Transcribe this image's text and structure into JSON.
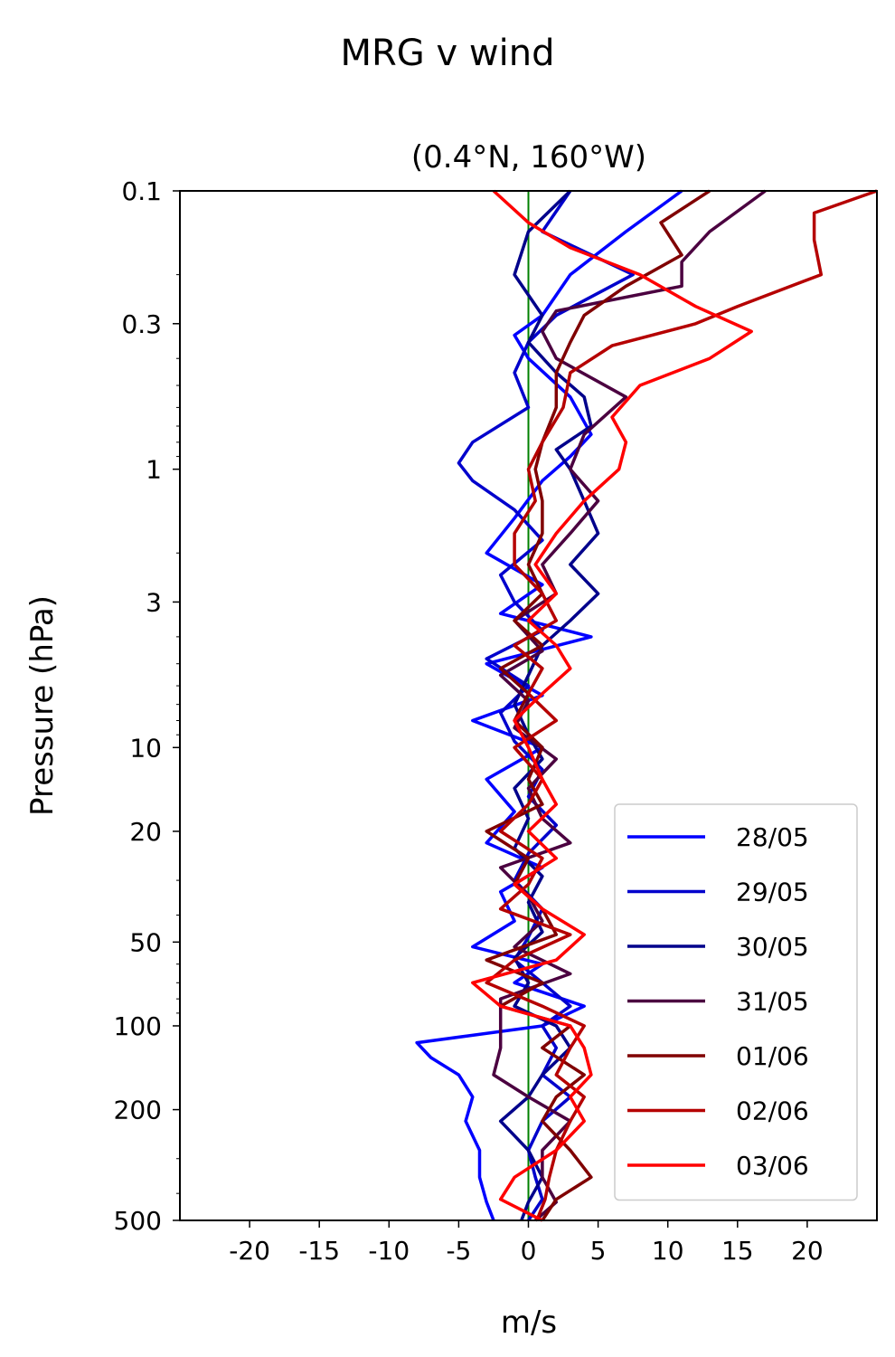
{
  "figure": {
    "title": "MRG v wind",
    "subtitle": "(0.4°N, 160°W)"
  },
  "chart_data": {
    "type": "line",
    "xlabel": "m/s",
    "ylabel": "Pressure (hPa)",
    "xlim": [
      -25,
      25
    ],
    "ylim": [
      500,
      0.1
    ],
    "yscale": "log",
    "inverted_y": true,
    "x_ticks": [
      -20,
      -15,
      -10,
      -5,
      0,
      5,
      10,
      15,
      20
    ],
    "x_tick_labels": [
      "-20",
      "-15",
      "-10",
      "-5",
      "0",
      "5",
      "10",
      "15",
      "20"
    ],
    "y_ticks": [
      0.1,
      0.3,
      1,
      3,
      10,
      20,
      50,
      100,
      200,
      500
    ],
    "y_tick_labels": [
      "0.1",
      "0.3",
      "1",
      "3",
      "10",
      "20",
      "50",
      "100",
      "200",
      "500"
    ],
    "zero_line": {
      "x": 0,
      "color": "#008000"
    },
    "grid": false,
    "legend_position": "lower-right",
    "series": [
      {
        "name": "28/05",
        "color": "#0000ff",
        "p": [
          0.1,
          0.14,
          0.2,
          0.28,
          0.33,
          0.4,
          0.55,
          0.75,
          0.9,
          1.1,
          1.5,
          2.0,
          2.6,
          3.3,
          4.0,
          5.0,
          6.5,
          8.0,
          10,
          13,
          17,
          22,
          27,
          33,
          42,
          52,
          60,
          70,
          85,
          100,
          115,
          130,
          150,
          180,
          220,
          280,
          350,
          430,
          500
        ],
        "x": [
          11,
          7,
          3,
          1,
          -1,
          0,
          3,
          4.5,
          3,
          1,
          -1,
          -3,
          1,
          -2,
          4.5,
          -3,
          1,
          -4,
          1,
          -3,
          -1,
          -3,
          1,
          -2,
          -1,
          -4,
          1,
          -1,
          4,
          1,
          -8,
          -7,
          -5,
          -4,
          -4.5,
          -3.5,
          -3.5,
          -3,
          -2.5
        ]
      },
      {
        "name": "29/05",
        "color": "#0000cc",
        "p": [
          0.1,
          0.14,
          0.2,
          0.28,
          0.35,
          0.45,
          0.6,
          0.8,
          0.95,
          1.1,
          1.4,
          1.8,
          2.4,
          3.0,
          3.8,
          4.8,
          6.0,
          7.5,
          9.5,
          12,
          15,
          19,
          24,
          30,
          38,
          48,
          58,
          70,
          85,
          100,
          120,
          150,
          180,
          220,
          280,
          350,
          420,
          500
        ],
        "x": [
          3,
          1,
          7.5,
          2,
          0,
          -1,
          0,
          -4,
          -5,
          -4,
          -1,
          1,
          -2,
          -1,
          1,
          -3,
          0,
          -2,
          -1,
          1,
          0,
          2,
          0,
          -1,
          1,
          0,
          -1,
          1,
          3,
          1,
          2,
          1,
          3,
          1,
          0,
          0.5,
          1,
          0
        ]
      },
      {
        "name": "30/05",
        "color": "#00008b",
        "p": [
          0.1,
          0.14,
          0.2,
          0.28,
          0.35,
          0.45,
          0.55,
          0.7,
          0.85,
          1.0,
          1.3,
          1.7,
          2.2,
          2.8,
          3.5,
          4.3,
          5.5,
          7.0,
          9.0,
          11,
          14,
          18,
          23,
          29,
          36,
          46,
          57,
          70,
          85,
          100,
          120,
          150,
          180,
          220,
          280,
          350,
          430,
          500
        ],
        "x": [
          3,
          0,
          -1,
          1,
          0,
          2,
          4,
          4.5,
          2,
          3,
          4,
          5,
          3,
          5,
          3,
          1,
          0,
          -1,
          0,
          1,
          -1,
          0,
          -1,
          1,
          0,
          1,
          -1,
          0,
          -1,
          2,
          3,
          1,
          0,
          -2,
          0,
          1,
          0,
          -0.5
        ]
      },
      {
        "name": "31/05",
        "color": "#4b0040",
        "p": [
          0.1,
          0.14,
          0.18,
          0.22,
          0.27,
          0.32,
          0.4,
          0.55,
          0.75,
          1.0,
          1.3,
          1.7,
          2.2,
          2.8,
          3.5,
          4.5,
          5.5,
          6.8,
          8.5,
          11,
          14,
          18,
          22,
          27,
          34,
          42,
          52,
          65,
          80,
          100,
          120,
          150,
          180,
          220,
          280,
          350,
          430,
          500
        ],
        "x": [
          17,
          13,
          11,
          11,
          2,
          1,
          2,
          7,
          4,
          3,
          5,
          3,
          1,
          2,
          -1,
          1,
          -2,
          0,
          -1,
          2,
          0,
          1,
          3,
          -2,
          0,
          1,
          -1,
          3,
          -2,
          -2,
          -2,
          -2.5,
          0,
          3,
          1,
          1,
          2,
          0.5
        ]
      },
      {
        "name": "01/06",
        "color": "#800000",
        "p": [
          0.1,
          0.13,
          0.17,
          0.22,
          0.28,
          0.35,
          0.45,
          0.6,
          0.8,
          1.0,
          1.3,
          1.7,
          2.2,
          2.8,
          3.5,
          4.3,
          5.2,
          6.4,
          8.0,
          10,
          13,
          16,
          20,
          25,
          31,
          38,
          47,
          58,
          70,
          85,
          100,
          120,
          150,
          180,
          220,
          280,
          350,
          420,
          500
        ],
        "x": [
          13,
          9.5,
          11,
          7,
          4,
          3,
          2,
          2,
          1,
          0.5,
          1,
          1,
          0,
          1,
          -1,
          1,
          -2,
          0,
          -1,
          1,
          0,
          1,
          -3,
          0,
          -1,
          1,
          2,
          -3,
          1,
          -2,
          3,
          1,
          4,
          2,
          1,
          3,
          4.5,
          2,
          1
        ]
      },
      {
        "name": "02/06",
        "color": "#b50000",
        "p": [
          0.1,
          0.12,
          0.15,
          0.2,
          0.26,
          0.3,
          0.36,
          0.45,
          0.6,
          0.8,
          1.0,
          1.3,
          1.7,
          2.2,
          2.8,
          3.5,
          4.3,
          5.2,
          6.4,
          8.0,
          10,
          13,
          16,
          20,
          25,
          31,
          38,
          47,
          58,
          70,
          85,
          100,
          120,
          150,
          180,
          220,
          280,
          350,
          420,
          500
        ],
        "x": [
          25,
          20.5,
          20.5,
          21,
          15,
          12,
          6,
          3,
          2.5,
          1,
          0,
          0.5,
          -1,
          -1,
          1,
          2,
          -1,
          1,
          0,
          2,
          -1,
          1,
          0,
          -2,
          1,
          0,
          -2,
          3,
          -1,
          -3,
          1,
          4,
          3,
          2,
          4,
          3,
          2,
          1.5,
          1.2,
          0.6
        ]
      },
      {
        "name": "03/06",
        "color": "#ff0000",
        "p": [
          0.1,
          0.13,
          0.16,
          0.2,
          0.26,
          0.32,
          0.4,
          0.5,
          0.65,
          0.8,
          1.0,
          1.3,
          1.7,
          2.2,
          2.8,
          3.5,
          4.3,
          5.2,
          6.4,
          8.0,
          10,
          13,
          16,
          20,
          25,
          31,
          38,
          47,
          58,
          70,
          85,
          100,
          120,
          150,
          180,
          220,
          280,
          350,
          420,
          500
        ],
        "x": [
          -2.5,
          0,
          3,
          8,
          12,
          16,
          13,
          8,
          6,
          7,
          6.5,
          4,
          2,
          0.5,
          2,
          0,
          2,
          3,
          1,
          -1,
          0,
          1,
          2,
          0,
          2,
          -1,
          1,
          4,
          2,
          -4,
          -2,
          3,
          4,
          4.5,
          3,
          4,
          2,
          -1,
          -2,
          1
        ]
      }
    ]
  }
}
